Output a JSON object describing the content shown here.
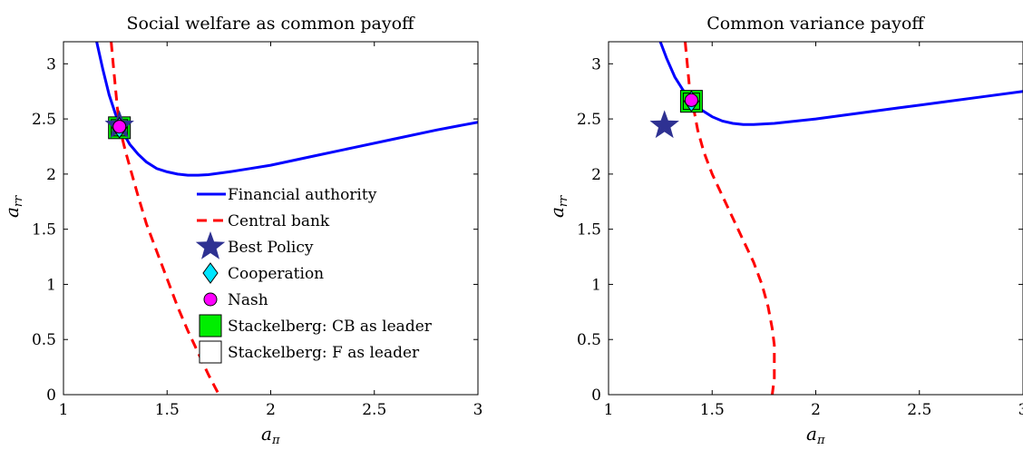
{
  "chart_data": [
    {
      "type": "line",
      "title": "Social welfare as common payoff",
      "xlabel": "a_π",
      "ylabel": "a_rr",
      "xlim": [
        1,
        3
      ],
      "ylim": [
        0,
        3.2
      ],
      "xticks": [
        "1",
        "1.5",
        "2",
        "2.5",
        "3"
      ],
      "yticks": [
        "0",
        "0.5",
        "1",
        "1.5",
        "2",
        "2.5",
        "3"
      ],
      "series": [
        {
          "name": "Financial authority",
          "style": "solid",
          "color": "#0000ff",
          "x": [
            1.16,
            1.19,
            1.22,
            1.25,
            1.28,
            1.32,
            1.36,
            1.4,
            1.45,
            1.5,
            1.55,
            1.6,
            1.65,
            1.7,
            1.8,
            1.9,
            2.0,
            2.2,
            2.4,
            2.6,
            2.8,
            3.0
          ],
          "y": [
            3.2,
            2.95,
            2.72,
            2.55,
            2.4,
            2.27,
            2.18,
            2.11,
            2.05,
            2.02,
            2.0,
            1.99,
            1.99,
            1.995,
            2.02,
            2.05,
            2.08,
            2.16,
            2.24,
            2.32,
            2.4,
            2.47
          ]
        },
        {
          "name": "Central bank",
          "style": "dashed",
          "color": "#ff0000",
          "x": [
            1.23,
            1.24,
            1.25,
            1.26,
            1.27,
            1.28,
            1.3,
            1.33,
            1.36,
            1.4,
            1.45,
            1.5,
            1.55,
            1.6,
            1.65,
            1.7,
            1.75
          ],
          "y": [
            3.2,
            3.0,
            2.8,
            2.6,
            2.45,
            2.35,
            2.2,
            2.0,
            1.8,
            1.55,
            1.3,
            1.05,
            0.8,
            0.58,
            0.38,
            0.18,
            0.0
          ]
        }
      ],
      "points": [
        {
          "name": "Best Policy",
          "x": 1.27,
          "y": 2.44,
          "shape": "star",
          "color": "#2e3192"
        },
        {
          "name": "Cooperation",
          "x": 1.27,
          "y": 2.42,
          "shape": "diamond",
          "color": "#00e5ff"
        },
        {
          "name": "Nash",
          "x": 1.27,
          "y": 2.43,
          "shape": "circle",
          "color": "#ff00ff"
        },
        {
          "name": "Stackelberg: CB as leader",
          "x": 1.27,
          "y": 2.42,
          "shape": "square",
          "color": "#00ee00"
        },
        {
          "name": "Stackelberg: F as leader",
          "x": 1.27,
          "y": 2.42,
          "shape": "square",
          "color": "#ffffff"
        }
      ],
      "legend": "inside, lower-middle"
    },
    {
      "type": "line",
      "title": "Common variance payoff",
      "xlabel": "a_π",
      "ylabel": "a_rr",
      "xlim": [
        1,
        3
      ],
      "ylim": [
        0,
        3.2
      ],
      "xticks": [
        "1",
        "1.5",
        "2",
        "2.5",
        "3"
      ],
      "yticks": [
        "0",
        "0.5",
        "1",
        "1.5",
        "2",
        "2.5",
        "3"
      ],
      "series": [
        {
          "name": "Financial authority",
          "style": "solid",
          "color": "#0000ff",
          "x": [
            1.25,
            1.28,
            1.32,
            1.36,
            1.4,
            1.45,
            1.5,
            1.55,
            1.6,
            1.65,
            1.7,
            1.8,
            2.0,
            2.2,
            2.4,
            2.6,
            2.8,
            3.0
          ],
          "y": [
            3.2,
            3.05,
            2.88,
            2.76,
            2.66,
            2.58,
            2.52,
            2.48,
            2.46,
            2.45,
            2.45,
            2.46,
            2.5,
            2.55,
            2.6,
            2.65,
            2.7,
            2.75
          ]
        },
        {
          "name": "Central bank",
          "style": "dashed",
          "color": "#ff0000",
          "x": [
            1.37,
            1.38,
            1.39,
            1.41,
            1.43,
            1.46,
            1.5,
            1.55,
            1.6,
            1.65,
            1.7,
            1.74,
            1.77,
            1.79,
            1.8,
            1.8,
            1.8,
            1.79
          ],
          "y": [
            3.2,
            3.0,
            2.8,
            2.6,
            2.4,
            2.2,
            2.0,
            1.8,
            1.6,
            1.4,
            1.2,
            1.0,
            0.8,
            0.6,
            0.45,
            0.3,
            0.15,
            0.0
          ]
        }
      ],
      "points": [
        {
          "name": "Best Policy",
          "x": 1.27,
          "y": 2.44,
          "shape": "star",
          "color": "#2e3192"
        },
        {
          "name": "Cooperation",
          "x": 1.4,
          "y": 2.66,
          "shape": "diamond",
          "color": "#00e5ff"
        },
        {
          "name": "Nash",
          "x": 1.4,
          "y": 2.67,
          "shape": "circle",
          "color": "#ff00ff"
        },
        {
          "name": "Stackelberg: CB as leader",
          "x": 1.4,
          "y": 2.66,
          "shape": "square",
          "color": "#00ee00"
        },
        {
          "name": "Stackelberg: F as leader",
          "x": 1.4,
          "y": 2.66,
          "shape": "square",
          "color": "#ffffff"
        }
      ]
    }
  ]
}
